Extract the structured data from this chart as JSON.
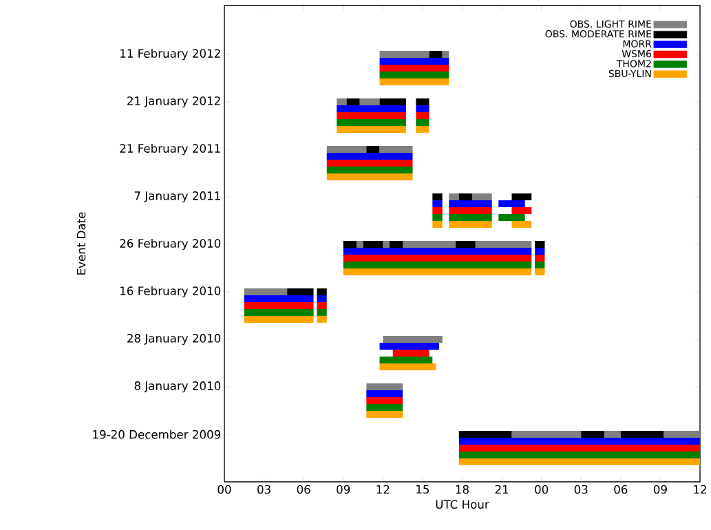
{
  "chart_data": {
    "type": "bar",
    "orientation": "horizontal",
    "xlabel": "UTC Hour",
    "ylabel": "Event Date",
    "legend": "top right",
    "categories": [
      "11 February 2012",
      "21 January 2012",
      "21 February 2011",
      "7 January 2011",
      "26 February 2010",
      "16 February 2010",
      "28 January 2010",
      "8 January 2010",
      "19-20 December 2009"
    ],
    "xlim": [
      0,
      36
    ],
    "xticks": [
      {
        "value": 0,
        "label": "00"
      },
      {
        "value": 3,
        "label": "03"
      },
      {
        "value": 6,
        "label": "06"
      },
      {
        "value": 9,
        "label": "09"
      },
      {
        "value": 12,
        "label": "12"
      },
      {
        "value": 15,
        "label": "15"
      },
      {
        "value": 18,
        "label": "18"
      },
      {
        "value": 21,
        "label": "21"
      },
      {
        "value": 24,
        "label": "00"
      },
      {
        "value": 27,
        "label": "03"
      },
      {
        "value": 30,
        "label": "06"
      },
      {
        "value": 33,
        "label": "09"
      },
      {
        "value": 36,
        "label": "12"
      }
    ],
    "series": [
      {
        "name": "OBS. LIGHT RIME",
        "color": "#808080",
        "base": [
          11.75,
          8.5,
          7.75,
          17,
          10,
          1.5,
          12,
          10.75,
          21.75
        ],
        "values": [
          3.75,
          0.75,
          3,
          0.75,
          0.5,
          3.25,
          4.5,
          2.75,
          5.25
        ]
      },
      {
        "name": "OBS. MODERATE RIME",
        "color": "#000000",
        "base": [
          15.5,
          9.25,
          10.75,
          15.75,
          9,
          4.75,
          null,
          null,
          17.75
        ],
        "values": [
          1,
          1,
          1,
          0.75,
          1,
          2,
          null,
          null,
          4
        ]
      },
      {
        "name": "MORR",
        "color": "#0000ff",
        "base": [
          11.75,
          8.5,
          7.75,
          15.75,
          9,
          1.5,
          11.75,
          10.75,
          17.75
        ],
        "values": [
          5.25,
          5.25,
          6.5,
          0.75,
          14.25,
          5.25,
          4.5,
          2.75,
          18.25
        ]
      },
      {
        "name": "WSM6",
        "color": "#ff0000",
        "base": [
          11.75,
          8.5,
          7.75,
          15.75,
          9,
          1.5,
          12.75,
          10.75,
          17.75
        ],
        "values": [
          5.25,
          5.25,
          6.5,
          0.75,
          14.25,
          5.25,
          2.75,
          2.75,
          18.25
        ]
      },
      {
        "name": "THOM2",
        "color": "#008000",
        "base": [
          11.75,
          8.5,
          7.75,
          15.75,
          9,
          1.5,
          11.75,
          10.75,
          17.75
        ],
        "values": [
          5.25,
          5.25,
          6.5,
          0.75,
          14.25,
          5.25,
          4,
          2.75,
          18.25
        ]
      },
      {
        "name": "SBU-YLIN",
        "color": "#ffa500",
        "base": [
          11.75,
          8.5,
          7.75,
          15.75,
          9,
          1.5,
          11.75,
          10.75,
          17.75
        ],
        "values": [
          5.25,
          5.25,
          6.5,
          0.75,
          14.25,
          5.25,
          4.25,
          2.75,
          18.25
        ]
      },
      {
        "color": "#808080",
        "base": [
          16.5,
          10.25,
          11.75,
          18.75,
          12,
          null,
          null,
          null,
          28.75
        ],
        "values": [
          0.5,
          1.5,
          2.5,
          1.5,
          0.5,
          null,
          null,
          null,
          1.25
        ]
      },
      {
        "color": "#808080",
        "base": [
          null,
          null,
          null,
          null,
          13.5,
          null,
          null,
          null,
          33.25
        ],
        "values": [
          null,
          null,
          null,
          null,
          4,
          null,
          null,
          null,
          2.75
        ]
      },
      {
        "color": "#808080",
        "base": [
          null,
          null,
          null,
          null,
          19,
          null,
          null,
          null,
          null
        ],
        "values": [
          null,
          null,
          null,
          null,
          4.25,
          null,
          null,
          null,
          null
        ]
      },
      {
        "color": "#000000",
        "base": [
          null,
          11.75,
          null,
          17.75,
          10.5,
          7,
          null,
          null,
          27
        ],
        "values": [
          null,
          2,
          null,
          1,
          1.5,
          0.75,
          null,
          null,
          1.75
        ]
      },
      {
        "color": "#000000",
        "base": [
          null,
          14.5,
          null,
          21.75,
          12.5,
          null,
          null,
          null,
          30
        ],
        "values": [
          null,
          1,
          null,
          1.5,
          1,
          null,
          null,
          null,
          3.25
        ]
      },
      {
        "color": "#000000",
        "base": [
          null,
          null,
          null,
          null,
          17.5,
          null,
          null,
          null,
          null
        ],
        "values": [
          null,
          null,
          null,
          null,
          1.5,
          null,
          null,
          null,
          null
        ]
      },
      {
        "color": "#000000",
        "base": [
          null,
          null,
          null,
          null,
          23.5,
          null,
          null,
          null,
          null
        ],
        "values": [
          null,
          null,
          null,
          null,
          0.75,
          null,
          null,
          null,
          null
        ]
      },
      {
        "color": "#0000ff",
        "base": [
          null,
          14.5,
          null,
          17,
          23.5,
          7,
          null,
          null,
          null
        ],
        "values": [
          null,
          1,
          null,
          3.25,
          0.75,
          0.75,
          null,
          null,
          null
        ]
      },
      {
        "color": "#0000ff",
        "base": [
          null,
          null,
          null,
          20.75,
          null,
          null,
          null,
          null,
          null
        ],
        "values": [
          null,
          null,
          null,
          2,
          null,
          null,
          null,
          null,
          null
        ]
      },
      {
        "color": "#ff0000",
        "base": [
          null,
          14.5,
          null,
          17,
          23.5,
          7,
          null,
          null,
          null
        ],
        "values": [
          null,
          1,
          null,
          3.25,
          0.75,
          0.75,
          null,
          null,
          null
        ]
      },
      {
        "color": "#ff0000",
        "base": [
          null,
          null,
          null,
          21.75,
          null,
          null,
          null,
          null,
          null
        ],
        "values": [
          null,
          null,
          null,
          1.5,
          null,
          null,
          null,
          null,
          null
        ]
      },
      {
        "color": "#008000",
        "base": [
          null,
          14.5,
          null,
          17,
          23.5,
          7,
          null,
          null,
          null
        ],
        "values": [
          null,
          1,
          null,
          3.25,
          0.75,
          0.75,
          null,
          null,
          null
        ]
      },
      {
        "color": "#008000",
        "base": [
          null,
          null,
          null,
          20.75,
          null,
          null,
          null,
          null,
          null
        ],
        "values": [
          null,
          null,
          null,
          2,
          null,
          null,
          null,
          null,
          null
        ]
      },
      {
        "color": "#ffa500",
        "base": [
          null,
          14.5,
          null,
          17,
          23.5,
          7,
          null,
          null,
          null
        ],
        "values": [
          null,
          1,
          null,
          3.25,
          0.75,
          0.75,
          null,
          null,
          null
        ]
      },
      {
        "color": "#ffa500",
        "base": [
          null,
          null,
          null,
          21.75,
          null,
          null,
          null,
          null,
          null
        ],
        "values": [
          null,
          null,
          null,
          1.5,
          null,
          null,
          null,
          null,
          null
        ]
      }
    ]
  }
}
